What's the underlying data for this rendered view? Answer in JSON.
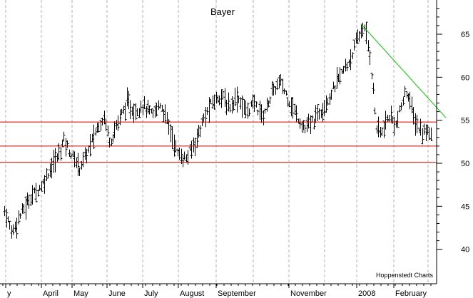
{
  "chart_data": {
    "type": "ohlc-bar",
    "title": "Bayer",
    "source_note": "Hoppenstedt Charts",
    "x_tick_labels": [
      "y",
      "April",
      "May",
      "June",
      "July",
      "August",
      "September",
      "November",
      "2008",
      "February"
    ],
    "y_ticks": [
      40,
      45,
      50,
      55,
      60,
      65
    ],
    "ylim": [
      39.5,
      68.5
    ],
    "grid": "vertical dashed at month boundaries",
    "horizontal_levels": {
      "color": "#cc0000",
      "values": [
        54.8,
        52.0,
        50.1
      ]
    },
    "trendline": {
      "color": "#00cc00",
      "points": [
        [
          "2008-01-08",
          66.2
        ],
        [
          "2008-03-18",
          55.3
        ]
      ]
    },
    "series_color": "#000000",
    "price_path": [
      [
        "2007-03-20",
        44.5
      ],
      [
        "2007-03-26",
        42.0
      ],
      [
        "2007-04-02",
        44.0
      ],
      [
        "2007-04-10",
        46.0
      ],
      [
        "2007-04-20",
        47.5
      ],
      [
        "2007-04-27",
        49.5
      ],
      [
        "2007-05-03",
        50.8
      ],
      [
        "2007-05-08",
        52.8
      ],
      [
        "2007-05-14",
        51.0
      ],
      [
        "2007-05-21",
        49.5
      ],
      [
        "2007-05-28",
        51.5
      ],
      [
        "2007-06-04",
        54.0
      ],
      [
        "2007-06-10",
        55.5
      ],
      [
        "2007-06-15",
        52.5
      ],
      [
        "2007-06-22",
        55.0
      ],
      [
        "2007-06-29",
        57.0
      ],
      [
        "2007-07-05",
        56.0
      ],
      [
        "2007-07-12",
        56.8
      ],
      [
        "2007-07-20",
        55.5
      ],
      [
        "2007-07-26",
        57.0
      ],
      [
        "2007-08-01",
        55.0
      ],
      [
        "2007-08-10",
        51.0
      ],
      [
        "2007-08-17",
        50.5
      ],
      [
        "2007-08-24",
        52.5
      ],
      [
        "2007-08-31",
        55.0
      ],
      [
        "2007-09-07",
        57.0
      ],
      [
        "2007-09-14",
        58.0
      ],
      [
        "2007-09-21",
        56.5
      ],
      [
        "2007-09-28",
        57.8
      ],
      [
        "2007-10-05",
        56.0
      ],
      [
        "2007-10-12",
        57.0
      ],
      [
        "2007-10-19",
        55.5
      ],
      [
        "2007-10-26",
        58.0
      ],
      [
        "2007-11-02",
        59.5
      ],
      [
        "2007-11-09",
        57.5
      ],
      [
        "2007-11-16",
        55.5
      ],
      [
        "2007-11-23",
        54.0
      ],
      [
        "2007-11-30",
        55.0
      ],
      [
        "2007-12-07",
        56.5
      ],
      [
        "2007-12-14",
        58.0
      ],
      [
        "2007-12-21",
        60.0
      ],
      [
        "2007-12-28",
        61.5
      ],
      [
        "2008-01-04",
        64.0
      ],
      [
        "2008-01-10",
        66.0
      ],
      [
        "2008-01-15",
        63.0
      ],
      [
        "2008-01-21",
        54.0
      ],
      [
        "2008-01-25",
        53.5
      ],
      [
        "2008-01-31",
        55.5
      ],
      [
        "2008-02-06",
        54.5
      ],
      [
        "2008-02-12",
        57.5
      ],
      [
        "2008-02-15",
        58.5
      ],
      [
        "2008-02-21",
        55.0
      ],
      [
        "2008-02-27",
        53.5
      ],
      [
        "2008-03-04",
        54.0
      ],
      [
        "2008-03-07",
        53.0
      ]
    ]
  }
}
